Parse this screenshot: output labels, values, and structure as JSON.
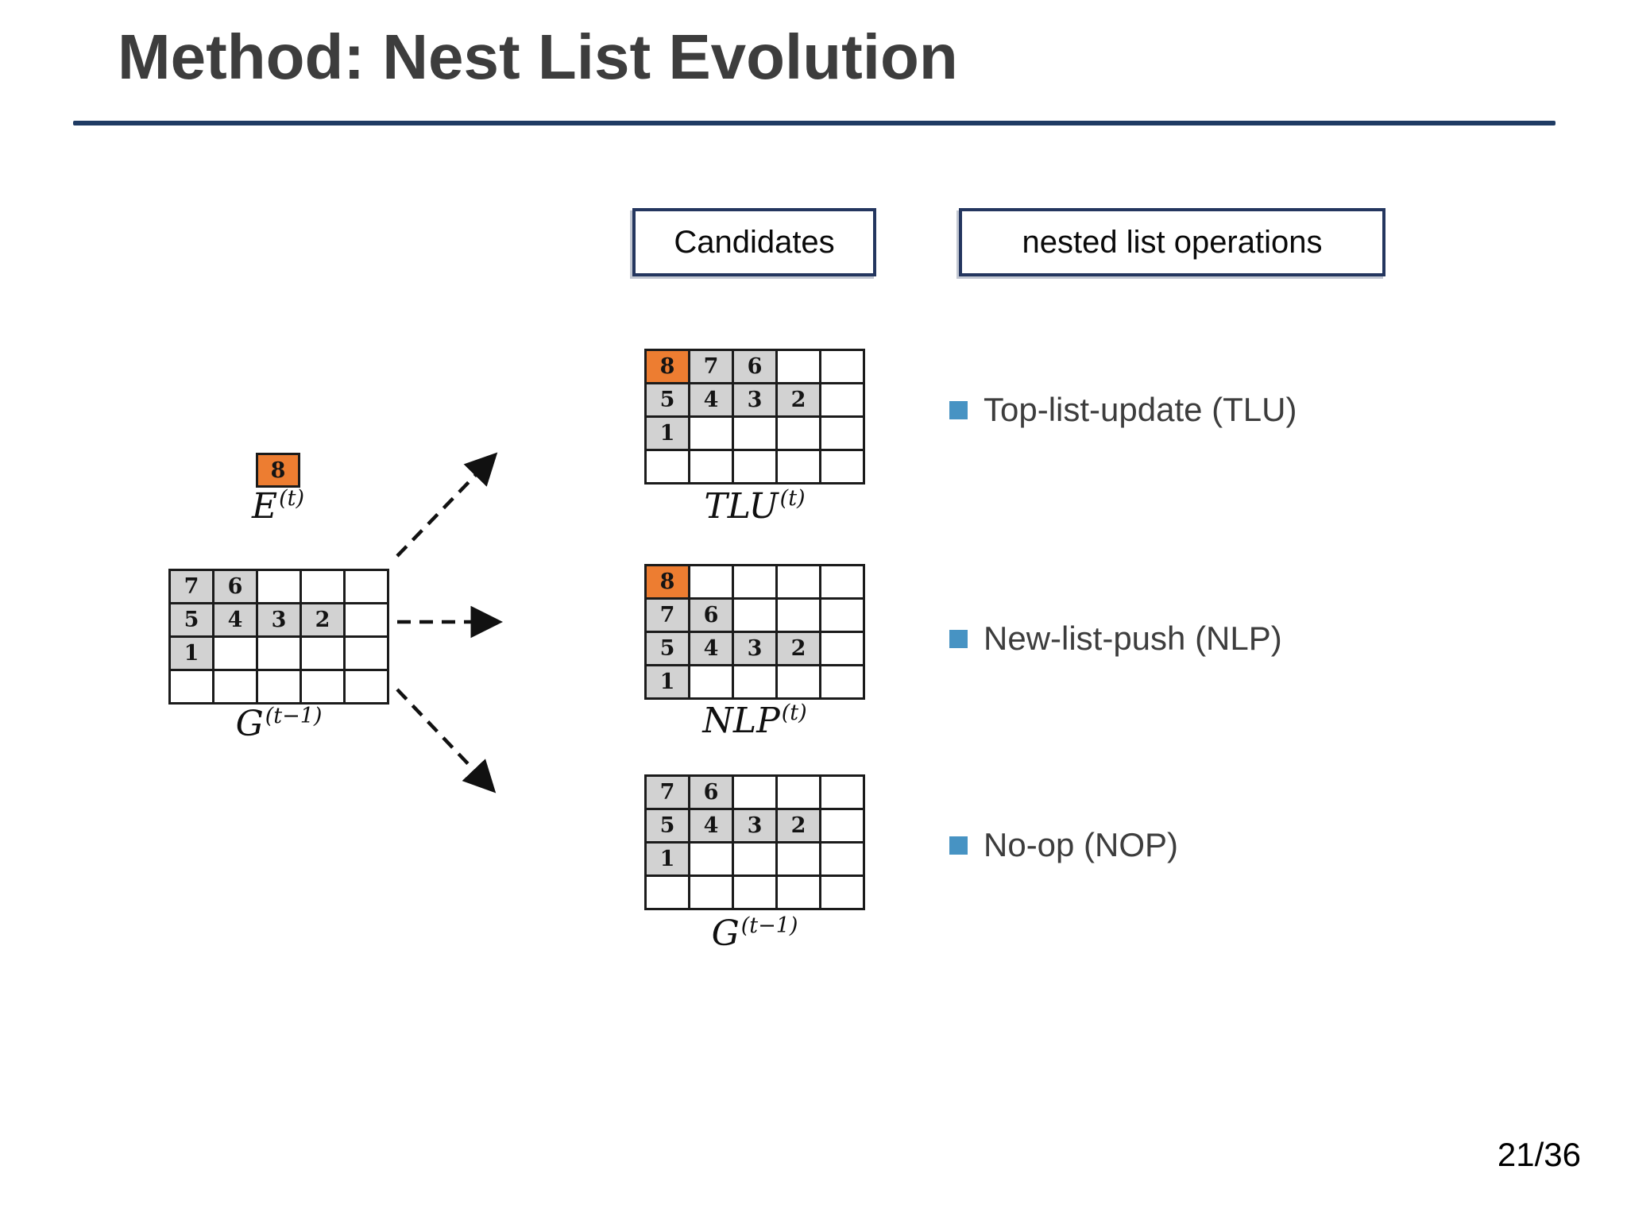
{
  "title": "Method: Nest List Evolution",
  "page_number": "21/36",
  "boxes": {
    "candidates_label": "Candidates",
    "operations_label": "nested list operations"
  },
  "left": {
    "event_cell_value": "8",
    "event_label_base": "E",
    "event_label_sup": "(t)",
    "source_label_base": "G",
    "source_label_sup": "(t−1)",
    "source_grid": [
      [
        "7",
        "6",
        "",
        "",
        ""
      ],
      [
        "5",
        "4",
        "3",
        "2",
        ""
      ],
      [
        "1",
        "",
        "",
        "",
        ""
      ],
      [
        "",
        "",
        "",
        "",
        ""
      ]
    ]
  },
  "candidates": [
    {
      "id": "tlu",
      "label_base": "TLU",
      "label_sup": "(t)",
      "grid": [
        [
          "8",
          "7",
          "6",
          "",
          ""
        ],
        [
          "5",
          "4",
          "3",
          "2",
          ""
        ],
        [
          "1",
          "",
          "",
          "",
          ""
        ],
        [
          "",
          "",
          "",
          "",
          ""
        ]
      ]
    },
    {
      "id": "nlp",
      "label_base": "NLP",
      "label_sup": "(t)",
      "grid": [
        [
          "8",
          "",
          "",
          "",
          ""
        ],
        [
          "7",
          "6",
          "",
          "",
          ""
        ],
        [
          "5",
          "4",
          "3",
          "2",
          ""
        ],
        [
          "1",
          "",
          "",
          "",
          ""
        ]
      ]
    },
    {
      "id": "gprev",
      "label_base": "G",
      "label_sup": "(t−1)",
      "grid": [
        [
          "7",
          "6",
          "",
          "",
          ""
        ],
        [
          "5",
          "4",
          "3",
          "2",
          ""
        ],
        [
          "1",
          "",
          "",
          "",
          ""
        ],
        [
          "",
          "",
          "",
          "",
          ""
        ]
      ]
    }
  ],
  "operations": [
    "Top-list-update (TLU)",
    "New-list-push (NLP)",
    "No-op (NOP)"
  ],
  "highlight_value": "8",
  "colors": {
    "orange": "#ED7D31",
    "cell_gray": "#D2D2D2",
    "bullet_blue": "#4793C3",
    "navy_line": "#1F3B63",
    "title_gray": "#3D3D3D"
  }
}
